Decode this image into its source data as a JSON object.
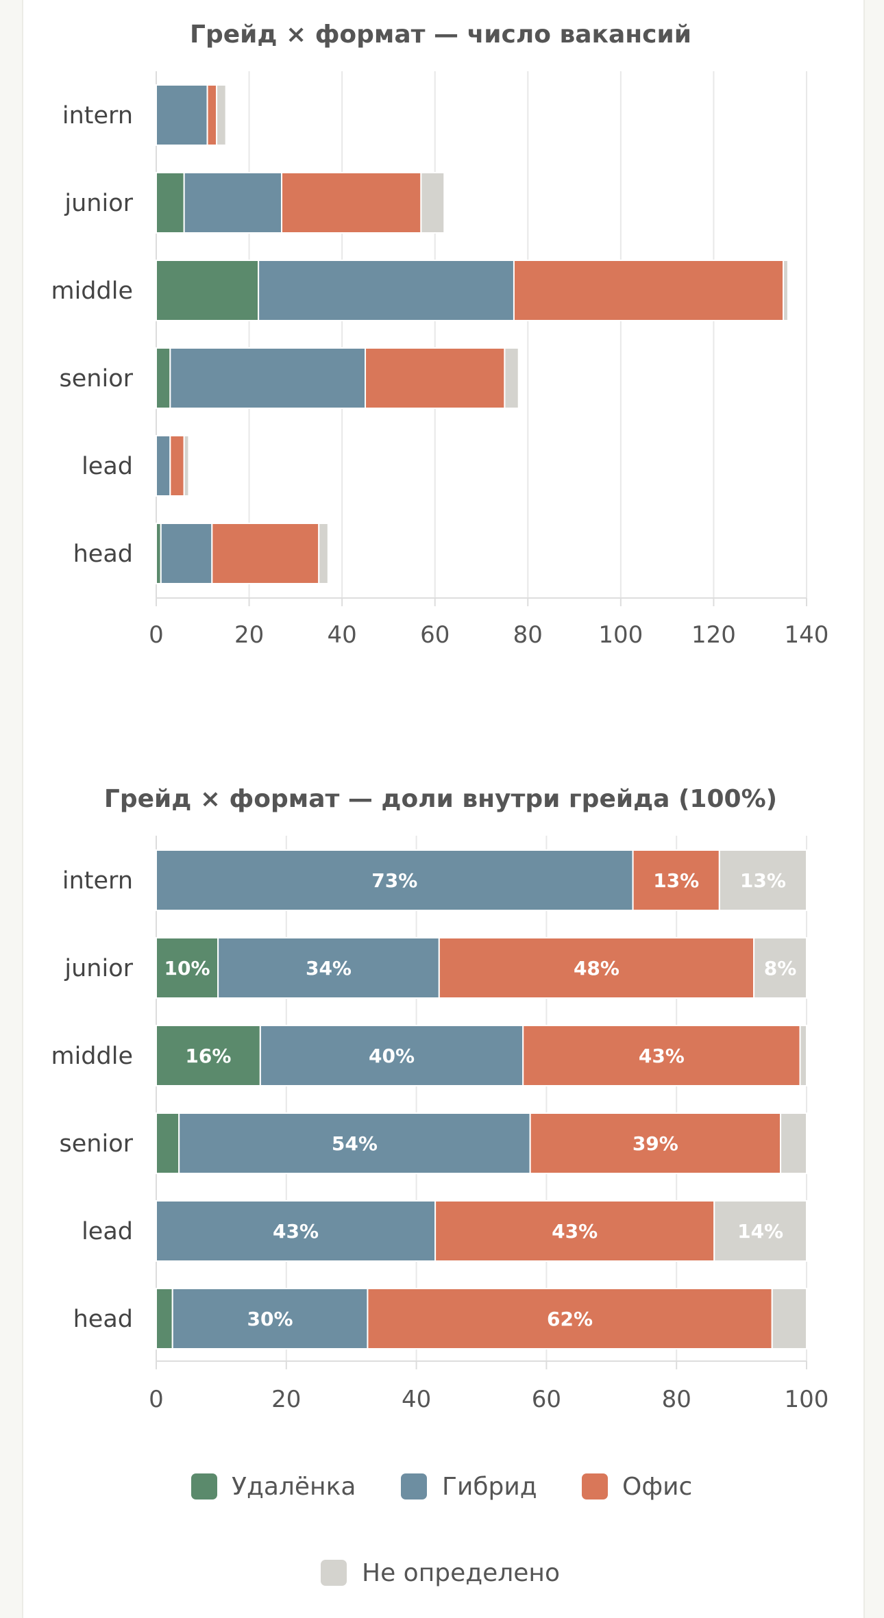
{
  "legend": [
    {
      "key": "remote",
      "label": "Удалёнка",
      "color": "#5b8a6c"
    },
    {
      "key": "hybrid",
      "label": "Гибрид",
      "color": "#6d8ea1"
    },
    {
      "key": "office",
      "label": "Офис",
      "color": "#d97759"
    },
    {
      "key": "undefined",
      "label": "Не определено",
      "color": "#d4d3ce"
    }
  ],
  "chart_data": [
    {
      "type": "bar",
      "orientation": "horizontal",
      "stacked": true,
      "title": "Грейд × формат — число вакансий",
      "categories": [
        "intern",
        "junior",
        "middle",
        "senior",
        "lead",
        "head"
      ],
      "series": [
        {
          "name": "Удалёнка",
          "values": [
            0,
            6,
            22,
            3,
            0,
            1
          ]
        },
        {
          "name": "Гибрид",
          "values": [
            11,
            21,
            55,
            42,
            3,
            11
          ]
        },
        {
          "name": "Офис",
          "values": [
            2,
            30,
            58,
            30,
            3,
            23
          ]
        },
        {
          "name": "Не определено",
          "values": [
            2,
            5,
            1,
            3,
            1,
            2
          ]
        }
      ],
      "xlim": [
        0,
        140
      ],
      "xticks": [
        "0",
        "20",
        "40",
        "60",
        "80",
        "100",
        "120",
        "140"
      ],
      "grid": true
    },
    {
      "type": "bar",
      "orientation": "horizontal",
      "stacked": true,
      "normalized": true,
      "title": "Грейд × формат — доли внутри грейда (100%)",
      "categories": [
        "intern",
        "junior",
        "middle",
        "senior",
        "lead",
        "head"
      ],
      "series": [
        {
          "name": "Удалёнка",
          "values": [
            0,
            9.5,
            16,
            3.5,
            0,
            2.5
          ],
          "labels": [
            "",
            "10%",
            "16%",
            "",
            "",
            ""
          ]
        },
        {
          "name": "Гибрид",
          "values": [
            73.3,
            34,
            40.4,
            54,
            42.9,
            30
          ],
          "labels": [
            "73%",
            "34%",
            "40%",
            "54%",
            "43%",
            "30%"
          ]
        },
        {
          "name": "Офис",
          "values": [
            13.3,
            48.4,
            42.6,
            38.5,
            42.9,
            62.2
          ],
          "labels": [
            "13%",
            "48%",
            "43%",
            "39%",
            "43%",
            "62%"
          ]
        },
        {
          "name": "Не определено",
          "values": [
            13.4,
            8.1,
            1,
            4,
            14.2,
            5.3
          ],
          "labels": [
            "13%",
            "8%",
            "",
            "",
            "14%",
            ""
          ]
        }
      ],
      "xlim": [
        0,
        100
      ],
      "xticks": [
        "0",
        "20",
        "40",
        "60",
        "80",
        "100"
      ],
      "grid": true,
      "legend_position": "bottom"
    }
  ]
}
